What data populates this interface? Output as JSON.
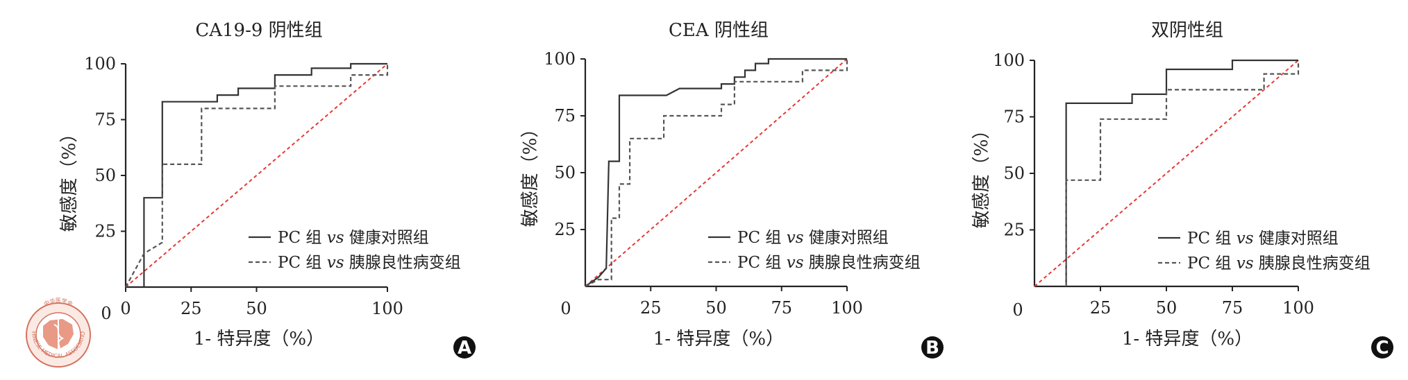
{
  "chart_data": [
    {
      "type": "line",
      "panel": "A",
      "title": "CA19-9 阴性组",
      "xlabel": "1- 特异度（%）",
      "ylabel": "敏感度（%）",
      "xlim": [
        0,
        100
      ],
      "ylim": [
        0,
        100
      ],
      "xticks": [
        "0",
        "25",
        "50",
        "100"
      ],
      "yticks": [
        "25",
        "50",
        "75",
        "100"
      ],
      "x_origin_label": "0",
      "grid": false,
      "legend": "bottom-right",
      "reference_line": {
        "from": [
          0,
          0
        ],
        "to": [
          100,
          100
        ],
        "color": "#e53935",
        "style": "dashed"
      },
      "series": [
        {
          "name": "PC 组 vs 健康对照组",
          "style": "solid",
          "color": "#333333",
          "points": [
            [
              7,
              0
            ],
            [
              7,
              40
            ],
            [
              14,
              40
            ],
            [
              14,
              83
            ],
            [
              35,
              83
            ],
            [
              35,
              86
            ],
            [
              43,
              86
            ],
            [
              43,
              89
            ],
            [
              57,
              89
            ],
            [
              57,
              95
            ],
            [
              71,
              95
            ],
            [
              71,
              98
            ],
            [
              86,
              98
            ],
            [
              86,
              100
            ],
            [
              100,
              100
            ]
          ]
        },
        {
          "name": "PC 组 vs 胰腺良性病变组",
          "style": "dashed",
          "color": "#555555",
          "points": [
            [
              0,
              0
            ],
            [
              7,
              15
            ],
            [
              14,
              20
            ],
            [
              14,
              55
            ],
            [
              29,
              55
            ],
            [
              29,
              80
            ],
            [
              57,
              80
            ],
            [
              57,
              90
            ],
            [
              86,
              90
            ],
            [
              86,
              95
            ],
            [
              100,
              95
            ],
            [
              100,
              100
            ]
          ]
        }
      ]
    },
    {
      "type": "line",
      "panel": "B",
      "title": "CEA 阴性组",
      "xlabel": "1- 特异度（%）",
      "ylabel": "敏感度（%）",
      "xlim": [
        0,
        100
      ],
      "ylim": [
        0,
        100
      ],
      "xticks": [
        "25",
        "50",
        "75",
        "100"
      ],
      "yticks": [
        "25",
        "50",
        "75",
        "100"
      ],
      "x_origin_label": "0",
      "grid": false,
      "legend": "bottom-right",
      "reference_line": {
        "from": [
          0,
          0
        ],
        "to": [
          100,
          100
        ],
        "color": "#e53935",
        "style": "dashed"
      },
      "series": [
        {
          "name": "PC 组 vs 健康对照组",
          "style": "solid",
          "color": "#333333",
          "points": [
            [
              0,
              0
            ],
            [
              5,
              4
            ],
            [
              8,
              8
            ],
            [
              9,
              55
            ],
            [
              13,
              55
            ],
            [
              13,
              84
            ],
            [
              31,
              84
            ],
            [
              36,
              87
            ],
            [
              52,
              87
            ],
            [
              52,
              89
            ],
            [
              57,
              89
            ],
            [
              57,
              92
            ],
            [
              61,
              92
            ],
            [
              61,
              95
            ],
            [
              65,
              95
            ],
            [
              65,
              98
            ],
            [
              70,
              98
            ],
            [
              70,
              100
            ],
            [
              100,
              100
            ]
          ]
        },
        {
          "name": "PC 组 vs 胰腺良性病变组",
          "style": "dashed",
          "color": "#555555",
          "points": [
            [
              0,
              0
            ],
            [
              5,
              3
            ],
            [
              10,
              3
            ],
            [
              10,
              30
            ],
            [
              13,
              30
            ],
            [
              13,
              45
            ],
            [
              17,
              45
            ],
            [
              17,
              65
            ],
            [
              30,
              65
            ],
            [
              30,
              75
            ],
            [
              52,
              75
            ],
            [
              52,
              80
            ],
            [
              57,
              80
            ],
            [
              57,
              90
            ],
            [
              83,
              90
            ],
            [
              83,
              95
            ],
            [
              100,
              95
            ],
            [
              100,
              100
            ]
          ]
        }
      ]
    },
    {
      "type": "line",
      "panel": "C",
      "title": "双阴性组",
      "xlabel": "1- 特异度（%）",
      "ylabel": "敏感度（%）",
      "xlim": [
        0,
        100
      ],
      "ylim": [
        0,
        100
      ],
      "xticks": [
        "25",
        "50",
        "75",
        "100"
      ],
      "yticks": [
        "25",
        "50",
        "75",
        "100"
      ],
      "x_origin_label": "0",
      "grid": false,
      "legend": "bottom-right",
      "reference_line": {
        "from": [
          0,
          0
        ],
        "to": [
          100,
          100
        ],
        "color": "#e53935",
        "style": "dashed"
      },
      "series": [
        {
          "name": "PC 组 vs 健康对照组",
          "style": "solid",
          "color": "#333333",
          "points": [
            [
              12,
              0
            ],
            [
              12,
              81
            ],
            [
              37,
              81
            ],
            [
              37,
              85
            ],
            [
              50,
              85
            ],
            [
              50,
              96
            ],
            [
              75,
              96
            ],
            [
              75,
              100
            ],
            [
              100,
              100
            ]
          ]
        },
        {
          "name": "PC 组 vs 胰腺良性病变组",
          "style": "dashed",
          "color": "#555555",
          "points": [
            [
              12,
              0
            ],
            [
              12,
              47
            ],
            [
              25,
              47
            ],
            [
              25,
              74
            ],
            [
              50,
              74
            ],
            [
              50,
              87
            ],
            [
              87,
              87
            ],
            [
              87,
              94
            ],
            [
              100,
              94
            ],
            [
              100,
              100
            ]
          ]
        }
      ]
    }
  ],
  "logo": {
    "top_text": "中华医学会",
    "bottom_text": "CHINESE MEDICAL ASSOCIATION",
    "color": "#d4725e"
  }
}
